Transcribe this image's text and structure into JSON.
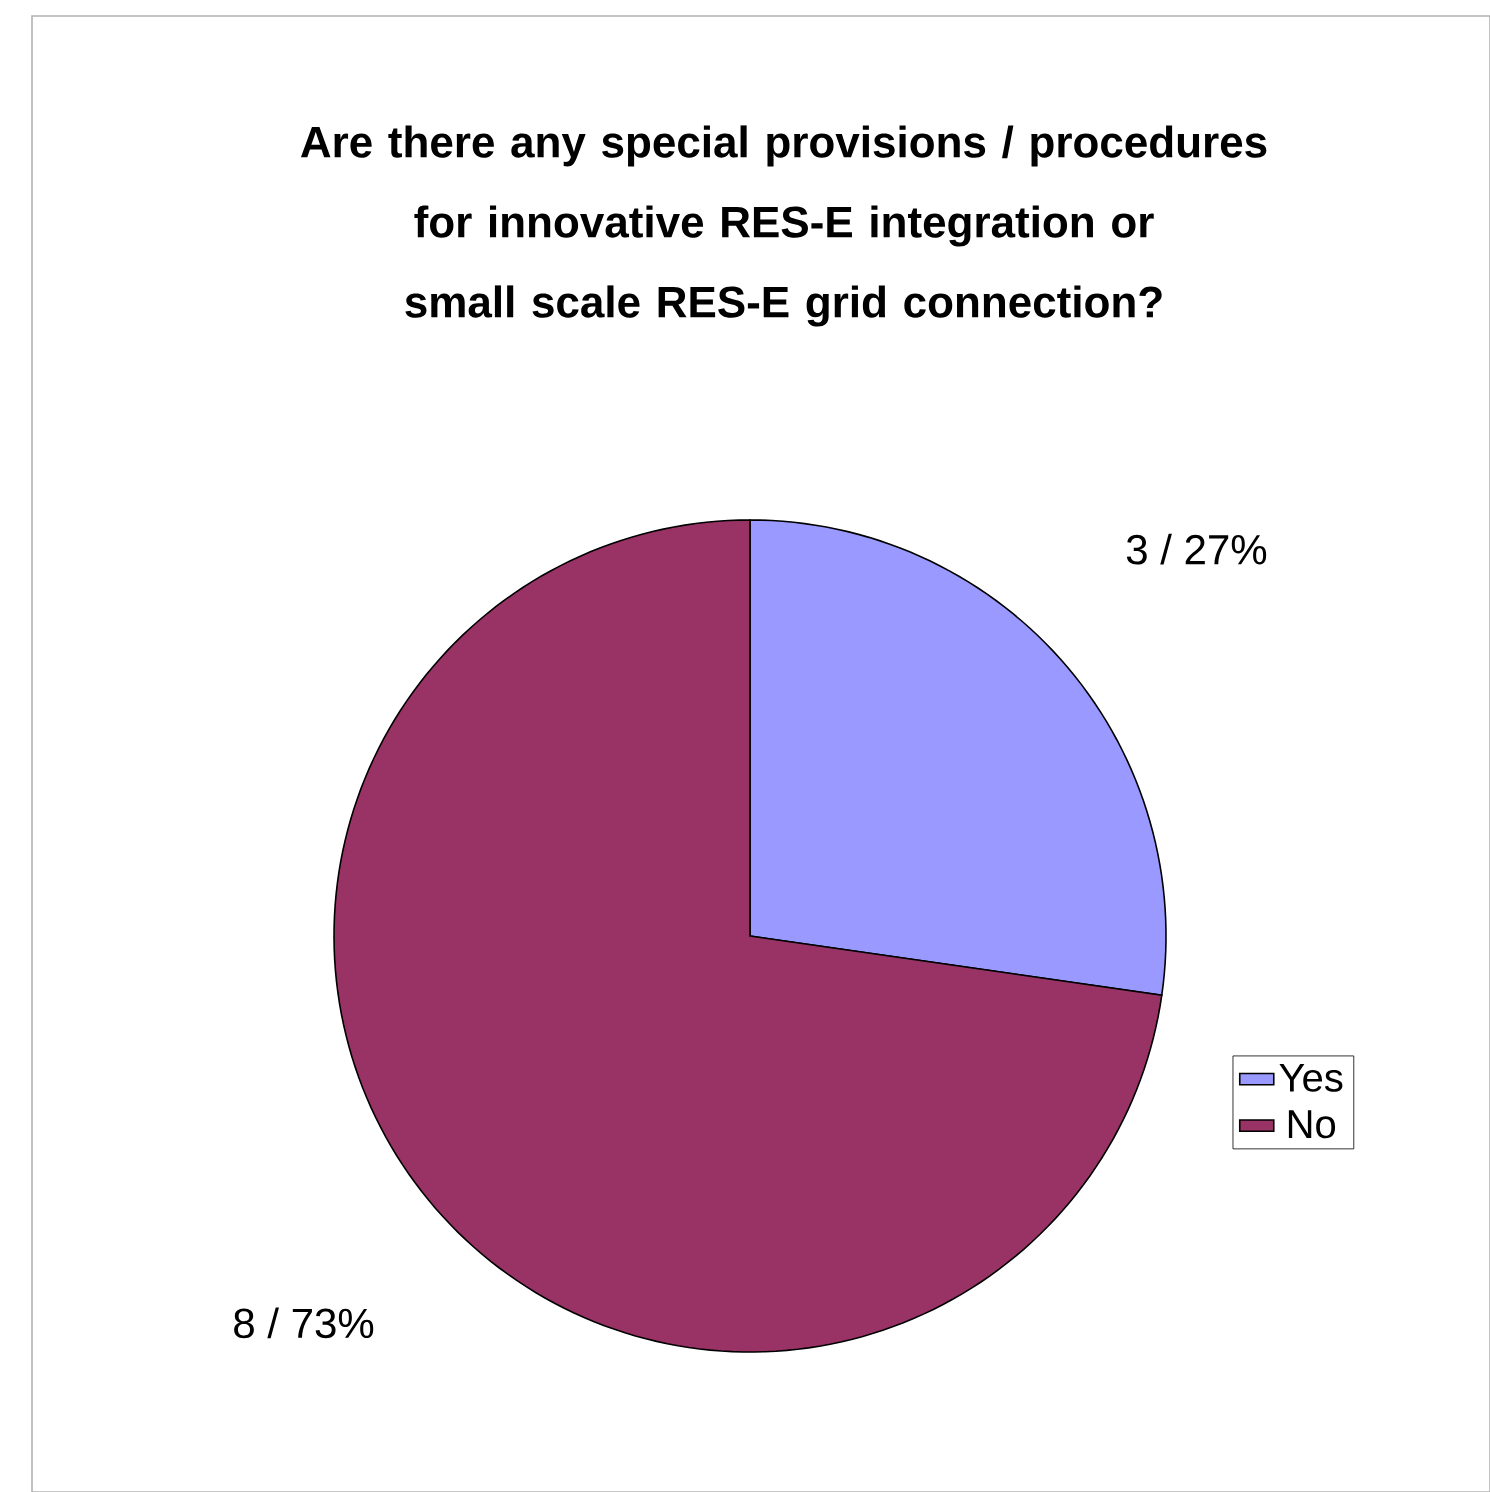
{
  "chart_data": {
    "type": "pie",
    "title": "Are there any special provisions / procedures for innovative RES-E integration or small scale RES-E grid connection?",
    "categories": [
      "Yes",
      "No"
    ],
    "values": [
      3,
      8
    ],
    "value_labels": [
      "3 / 27%",
      "8 / 73%"
    ],
    "colors": [
      "#9999ff",
      "#993366"
    ],
    "legend": "right"
  }
}
